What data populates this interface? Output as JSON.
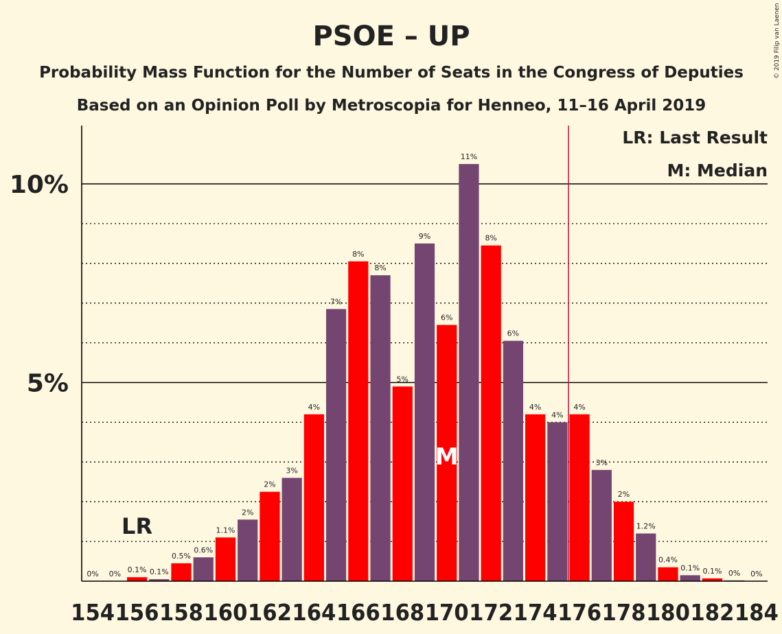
{
  "chart_data": {
    "type": "bar",
    "title": "PSOE – UP",
    "subtitle1": "Probability Mass Function for the Number of Seats in the Congress of Deputies",
    "subtitle2": "Based on an Opinion Poll by Metroscopia for Henneo, 11–16 April 2019",
    "copyright": "© 2019 Filip van Laenen",
    "x": [
      154,
      155,
      156,
      157,
      158,
      159,
      160,
      161,
      162,
      163,
      164,
      165,
      166,
      167,
      168,
      169,
      170,
      171,
      172,
      173,
      174,
      175,
      176,
      177,
      178,
      179,
      180,
      181,
      182,
      183,
      184
    ],
    "values": [
      0,
      0,
      0.1,
      0.05,
      0.45,
      0.6,
      1.1,
      1.55,
      2.25,
      2.6,
      4.2,
      6.85,
      8.05,
      7.7,
      4.9,
      8.5,
      6.45,
      10.5,
      8.45,
      6.05,
      4.2,
      4.0,
      4.2,
      2.8,
      2.0,
      1.2,
      0.35,
      0.15,
      0.07,
      0.02,
      0
    ],
    "data_labels": [
      "0%",
      "0%",
      "0.1%",
      "0.1%",
      "0.5%",
      "0.6%",
      "1.1%",
      "2%",
      "2%",
      "3%",
      "4%",
      "7%",
      "8%",
      "8%",
      "5%",
      "9%",
      "6%",
      "11%",
      "8%",
      "6%",
      "4%",
      "4%",
      "4%",
      "3%",
      "2%",
      "1.2%",
      "0.4%",
      "0.1%",
      "0.1%",
      "0%",
      "0%"
    ],
    "x_tick_labels": [
      "154",
      "156",
      "158",
      "160",
      "162",
      "164",
      "166",
      "168",
      "170",
      "172",
      "174",
      "176",
      "178",
      "180",
      "182",
      "184"
    ],
    "y_tick_labels": [
      {
        "value": 5,
        "label": "5%"
      },
      {
        "value": 10,
        "label": "10%"
      }
    ],
    "ylim": [
      0,
      11.5
    ],
    "colors": {
      "odd": "#FF0000",
      "even": "#744570",
      "median_line": "#C0103A",
      "background": "#FFF8E1"
    },
    "last_result_seat": 156,
    "last_result_marker": "LR",
    "median_seat": 170,
    "median_marker": "M",
    "majority_seat": 176,
    "legend": [
      "LR: Last Result",
      "M: Median"
    ],
    "legend_position": "top-right",
    "grid": "dotted every 1%, solid at 5% and 10%"
  }
}
